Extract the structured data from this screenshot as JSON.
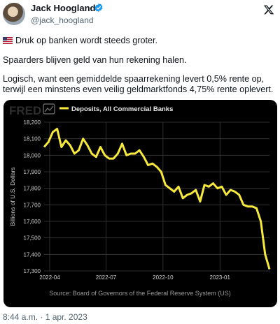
{
  "tweet": {
    "author_name": "Jack Hoogland",
    "author_handle": "@jack_hoogland",
    "line1": "Druk op banken wordt steeds groter.",
    "line2": "Spaarders blijven geld van hun rekening halen.",
    "line3a": "Logisch, want een gemiddelde spaarrekening levert 0,5% rente op,",
    "line3b": "terwijl een minstens even veilig geldmarktfonds 4,75% rente oplevert.",
    "timestamp": "8:44 a.m. · 1 apr. 2023",
    "icons": {
      "verified": "verified-badge-icon",
      "platform": "x-logo-icon",
      "flag": "us-flag-icon"
    }
  },
  "chart_data": {
    "type": "line",
    "source_logo": "FRED",
    "series": [
      {
        "name": "Deposits, All Commercial Banks",
        "color": "#f7e93b",
        "points": [
          [
            "2022-03-23",
            18050
          ],
          [
            "2022-03-30",
            18080
          ],
          [
            "2022-04-06",
            18140
          ],
          [
            "2022-04-13",
            18160
          ],
          [
            "2022-04-20",
            18050
          ],
          [
            "2022-04-27",
            18090
          ],
          [
            "2022-05-04",
            18060
          ],
          [
            "2022-05-11",
            18010
          ],
          [
            "2022-05-18",
            18030
          ],
          [
            "2022-05-25",
            18100
          ],
          [
            "2022-06-01",
            18060
          ],
          [
            "2022-06-08",
            18010
          ],
          [
            "2022-06-15",
            17990
          ],
          [
            "2022-06-22",
            18050
          ],
          [
            "2022-06-29",
            18000
          ],
          [
            "2022-07-06",
            17980
          ],
          [
            "2022-07-13",
            17980
          ],
          [
            "2022-07-20",
            18010
          ],
          [
            "2022-07-27",
            18070
          ],
          [
            "2022-08-03",
            18000
          ],
          [
            "2022-08-10",
            18010
          ],
          [
            "2022-08-17",
            18010
          ],
          [
            "2022-08-24",
            18030
          ],
          [
            "2022-08-31",
            17990
          ],
          [
            "2022-09-07",
            17940
          ],
          [
            "2022-09-14",
            17950
          ],
          [
            "2022-09-21",
            17930
          ],
          [
            "2022-09-28",
            17900
          ],
          [
            "2022-10-05",
            17820
          ],
          [
            "2022-10-12",
            17800
          ],
          [
            "2022-10-19",
            17780
          ],
          [
            "2022-10-26",
            17810
          ],
          [
            "2022-11-02",
            17740
          ],
          [
            "2022-11-09",
            17760
          ],
          [
            "2022-11-16",
            17770
          ],
          [
            "2022-11-23",
            17790
          ],
          [
            "2022-11-30",
            17720
          ],
          [
            "2022-12-07",
            17820
          ],
          [
            "2022-12-14",
            17810
          ],
          [
            "2022-12-21",
            17830
          ],
          [
            "2022-12-28",
            17800
          ],
          [
            "2023-01-04",
            17810
          ],
          [
            "2023-01-11",
            17760
          ],
          [
            "2023-01-18",
            17790
          ],
          [
            "2023-01-25",
            17780
          ],
          [
            "2023-02-01",
            17760
          ],
          [
            "2023-02-08",
            17700
          ],
          [
            "2023-02-15",
            17690
          ],
          [
            "2023-02-22",
            17690
          ],
          [
            "2023-03-01",
            17680
          ],
          [
            "2023-03-08",
            17600
          ],
          [
            "2023-03-15",
            17400
          ],
          [
            "2023-03-22",
            17310
          ]
        ]
      }
    ],
    "ylabel": "Billions of U.S. Dollars",
    "ylim": [
      17300,
      18200
    ],
    "yticks": [
      17300,
      17400,
      17500,
      17600,
      17700,
      17800,
      17900,
      18000,
      18100,
      18200
    ],
    "ytick_labels": [
      "17,300",
      "17,400",
      "17,500",
      "17,600",
      "17,700",
      "17,800",
      "17,900",
      "18,000",
      "18,100",
      "18,200"
    ],
    "xlim": [
      "2022-03-23",
      "2023-03-22"
    ],
    "xticks": [
      "2022-04-01",
      "2022-07-01",
      "2022-10-01",
      "2023-01-01"
    ],
    "xtick_labels": [
      "2022-04",
      "2022-07",
      "2022-10",
      "2023-01"
    ],
    "grid": true,
    "legend_position": "top-left",
    "source_note": "Source: Board of Governors of the Federal Reserve System (US)",
    "colors": {
      "background": "#000000",
      "grid": "#3a3a3a",
      "text": "#cfcfcf",
      "source": "#9a9a9a"
    }
  }
}
